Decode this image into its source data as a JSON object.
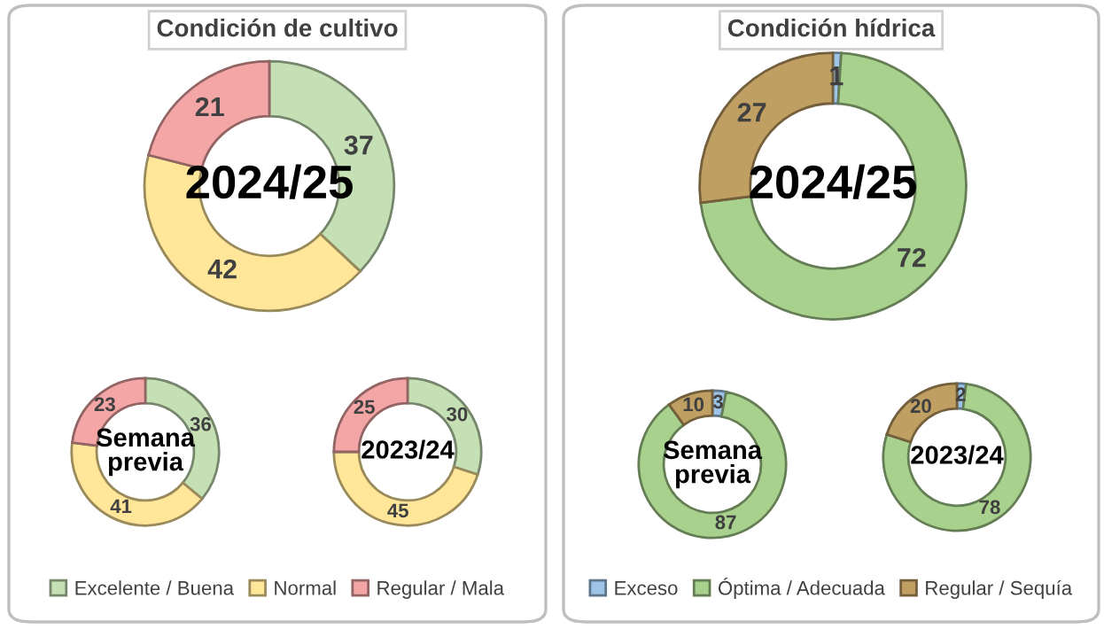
{
  "chart_data": [
    {
      "type": "donut",
      "title": "Condición de cultivo",
      "categories": [
        "Excelente / Buena",
        "Normal",
        "Regular / Mala"
      ],
      "values": [
        37,
        42,
        21
      ],
      "colors": [
        "#c5e0b4",
        "#ffe699",
        "#f4a6a6"
      ],
      "data_labels": true,
      "legend": "bottom",
      "annotations": [
        "2024/25"
      ]
    },
    {
      "type": "donut",
      "values": [
        36,
        41,
        23
      ],
      "colors": [
        "#c5e0b4",
        "#ffe699",
        "#f4a6a6"
      ],
      "data_labels": true,
      "annotations": [
        "Semana\nprevia"
      ]
    },
    {
      "type": "donut",
      "values": [
        30,
        45,
        25
      ],
      "colors": [
        "#c5e0b4",
        "#ffe699",
        "#f4a6a6"
      ],
      "data_labels": true,
      "annotations": [
        "2023/24"
      ]
    },
    {
      "type": "donut",
      "title": "Condición hídrica",
      "categories": [
        "Exceso",
        "Óptima / Adecuada",
        "Regular / Sequía"
      ],
      "values": [
        1,
        72,
        27
      ],
      "colors": [
        "#9dc3e6",
        "#a9d18e",
        "#bf9f62"
      ],
      "data_labels": true,
      "legend": "bottom",
      "annotations": [
        "2024/25"
      ]
    },
    {
      "type": "donut",
      "values": [
        3,
        87,
        10
      ],
      "colors": [
        "#9dc3e6",
        "#a9d18e",
        "#bf9f62"
      ],
      "data_labels": true,
      "annotations": [
        "Semana\nprevia"
      ]
    },
    {
      "type": "donut",
      "values": [
        2,
        78,
        20
      ],
      "colors": [
        "#9dc3e6",
        "#a9d18e",
        "#bf9f62"
      ],
      "data_labels": true,
      "annotations": [
        "2023/24"
      ]
    }
  ]
}
